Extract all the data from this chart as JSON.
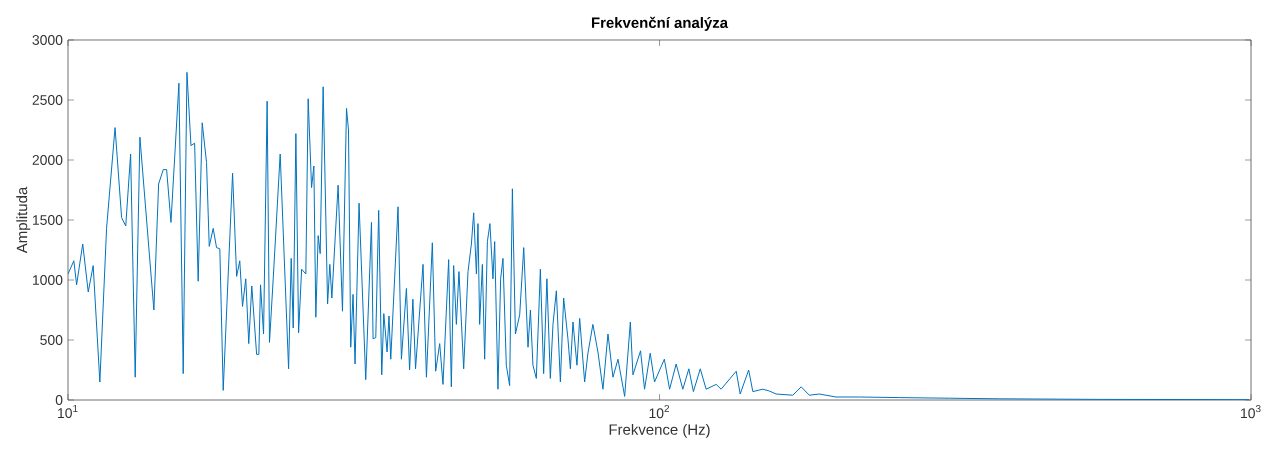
{
  "chart_data": {
    "type": "line",
    "title": "Frekvenční analýza",
    "xlabel": "Frekvence (Hz)",
    "ylabel": "Amplituda",
    "log": "x",
    "grid": false,
    "color": "#0072bd",
    "xlim": [
      10,
      1000
    ],
    "ylim": [
      0,
      3000
    ],
    "xticks": [
      {
        "value": 10,
        "label": "10$^{1}$"
      },
      {
        "value": 100,
        "label": "10$^{2}$"
      },
      {
        "value": 1000,
        "label": "10$^{3}$"
      }
    ],
    "yticks": [
      0,
      500,
      1000,
      1500,
      2000,
      2500,
      3000
    ],
    "x": [
      10.0,
      10.23,
      10.34,
      10.59,
      10.82,
      11.03,
      11.32,
      11.62,
      12.01,
      12.32,
      12.52,
      12.76,
      12.99,
      13.23,
      13.97,
      14.23,
      14.49,
      14.68,
      14.93,
      15.4,
      15.66,
      15.89,
      16.14,
      16.37,
      16.6,
      16.86,
      17.15,
      17.33,
      17.6,
      17.83,
      18.06,
      18.3,
      18.98,
      19.28,
      19.52,
      19.73,
      19.98,
      20.21,
      20.45,
      20.84,
      21.02,
      21.16,
      21.41,
      21.71,
      21.91,
      22.23,
      22.84,
      23.6,
      23.84,
      24.03,
      24.28,
      24.54,
      24.83,
      25.24,
      25.47,
      25.81,
      26.04,
      26.24,
      26.48,
      26.69,
      27.0,
      27.47,
      27.71,
      27.93,
      28.62,
      29.11,
      29.57,
      29.8,
      30.06,
      30.33,
      30.57,
      31.05,
      31.87,
      32.59,
      32.79,
      33.14,
      33.52,
      33.92,
      34.19,
      34.63,
      34.89,
      35.13,
      36.14,
      36.62,
      37.34,
      37.8,
      38.29,
      38.69,
      39.83,
      40.36,
      41.3,
      41.84,
      42.5,
      43.05,
      44.01,
      44.47,
      44.87,
      45.35,
      45.81,
      46.66,
      47.45,
      48.08,
      48.51,
      49.03,
      49.33,
      49.65,
      50.18,
      50.63,
      51.17,
      51.68,
      52.29,
      52.64,
      53.32,
      53.88,
      54.37,
      55.08,
      55.8,
      56.4,
      57.07,
      58.03,
      58.95,
      59.94,
      60.5,
      61.1,
      61.91,
      62.89,
      63.7,
      64.52,
      65.38,
      66.05,
      66.93,
      67.99,
      68.86,
      70.02,
      70.68,
      71.4,
      72.52,
      73.29,
      74.72,
      75.69,
      77.17,
      78.7,
      80.24,
      81.82,
      83.43,
      85.08,
      87.32,
      89.27,
      90.18,
      92.88,
      94.34,
      96.45,
      98.08,
      101.9,
      104.0,
      106.7,
      109.5,
      112.1,
      114.1,
      117.2,
      119.9,
      124.7,
      127.1,
      134.8,
      136.9,
      141.5,
      143.8,
      149.5,
      153.4,
      157.4,
      168.0,
      173.6,
      179.2,
      186.3,
      198.9,
      217.7,
      254.3,
      309.0,
      375.3,
      553.6,
      992.2
    ],
    "values": [
      1050,
      1160,
      960,
      1300,
      900,
      1120,
      150,
      1430,
      2270,
      1520,
      1450,
      2050,
      190,
      2190,
      750,
      1800,
      1920,
      1920,
      1480,
      2640,
      220,
      2730,
      2120,
      2140,
      990,
      2310,
      1980,
      1280,
      1430,
      1270,
      1260,
      80,
      1890,
      1030,
      1160,
      780,
      1010,
      470,
      950,
      380,
      380,
      960,
      550,
      2490,
      480,
      1010,
      2050,
      260,
      1180,
      600,
      2220,
      560,
      1090,
      1050,
      2510,
      1770,
      1950,
      690,
      1370,
      1220,
      2610,
      800,
      1130,
      850,
      1790,
      740,
      2430,
      2250,
      440,
      880,
      300,
      1640,
      170,
      1480,
      510,
      520,
      1580,
      210,
      720,
      400,
      700,
      340,
      1610,
      340,
      930,
      250,
      840,
      260,
      1130,
      190,
      1310,
      240,
      470,
      130,
      1170,
      110,
      1120,
      630,
      1070,
      260,
      1070,
      1300,
      1560,
      1050,
      1470,
      630,
      1130,
      340,
      1320,
      1470,
      1010,
      1320,
      90,
      1010,
      1180,
      290,
      120,
      1760,
      550,
      710,
      1270,
      440,
      750,
      290,
      180,
      1090,
      220,
      1010,
      180,
      630,
      910,
      150,
      850,
      510,
      260,
      650,
      290,
      680,
      150,
      390,
      630,
      400,
      90,
      550,
      190,
      340,
      30,
      650,
      210,
      410,
      90,
      390,
      150,
      340,
      90,
      300,
      90,
      260,
      70,
      260,
      90,
      130,
      90,
      240,
      50,
      250,
      70,
      90,
      75,
      50,
      40,
      110,
      40,
      50,
      25,
      25,
      20,
      15,
      10,
      5,
      3
    ]
  }
}
